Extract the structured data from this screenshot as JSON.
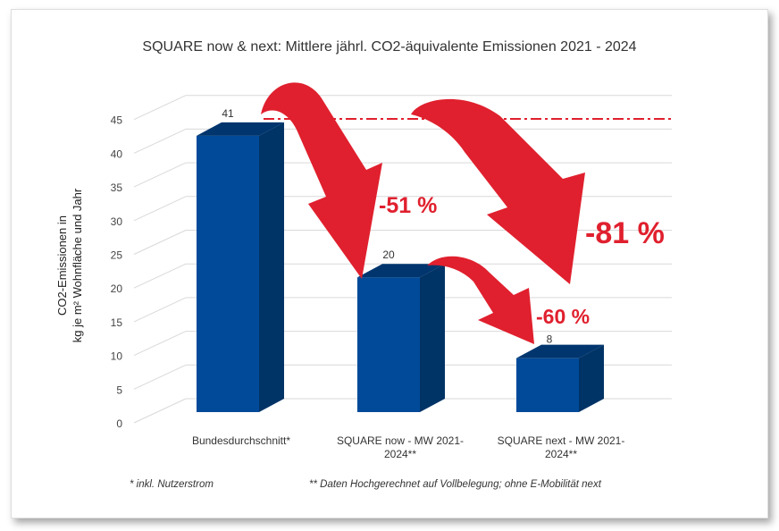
{
  "chart_data": {
    "type": "bar",
    "title": "SQUARE now & next: Mittlere jährl. CO2-äquivalente Emissionen 2021 - 2024",
    "ylabel_line1": "CO2-Emissionen in",
    "ylabel_line2": "kg je m² Wohnfläche und Jahr",
    "categories": [
      "Bundesdurchschnitt*",
      "SQUARE now - MW 2021-2024**",
      "SQUARE next - MW 2021-2024**"
    ],
    "values": [
      41,
      20,
      8
    ],
    "data_labels": [
      "41",
      "20",
      "8"
    ],
    "ylim": [
      0,
      45
    ],
    "yticks": [
      "0",
      "5",
      "10",
      "15",
      "20",
      "25",
      "30",
      "35",
      "40",
      "45"
    ],
    "grid": true,
    "style": "3d-column",
    "reference_line_value": 43.5,
    "annotations": [
      "-51 %",
      "-81 %",
      "-60 %"
    ],
    "footnotes": [
      "* inkl. Nutzerstrom",
      "** Daten Hochgerechnet auf Vollbelegung; ohne E-Mobilität next"
    ],
    "colors": {
      "bar_front": "#004a99",
      "bar_side": "#003366",
      "bar_top": "#00356e",
      "arrow": "#e0202e",
      "annotation": "#e0202e"
    }
  }
}
